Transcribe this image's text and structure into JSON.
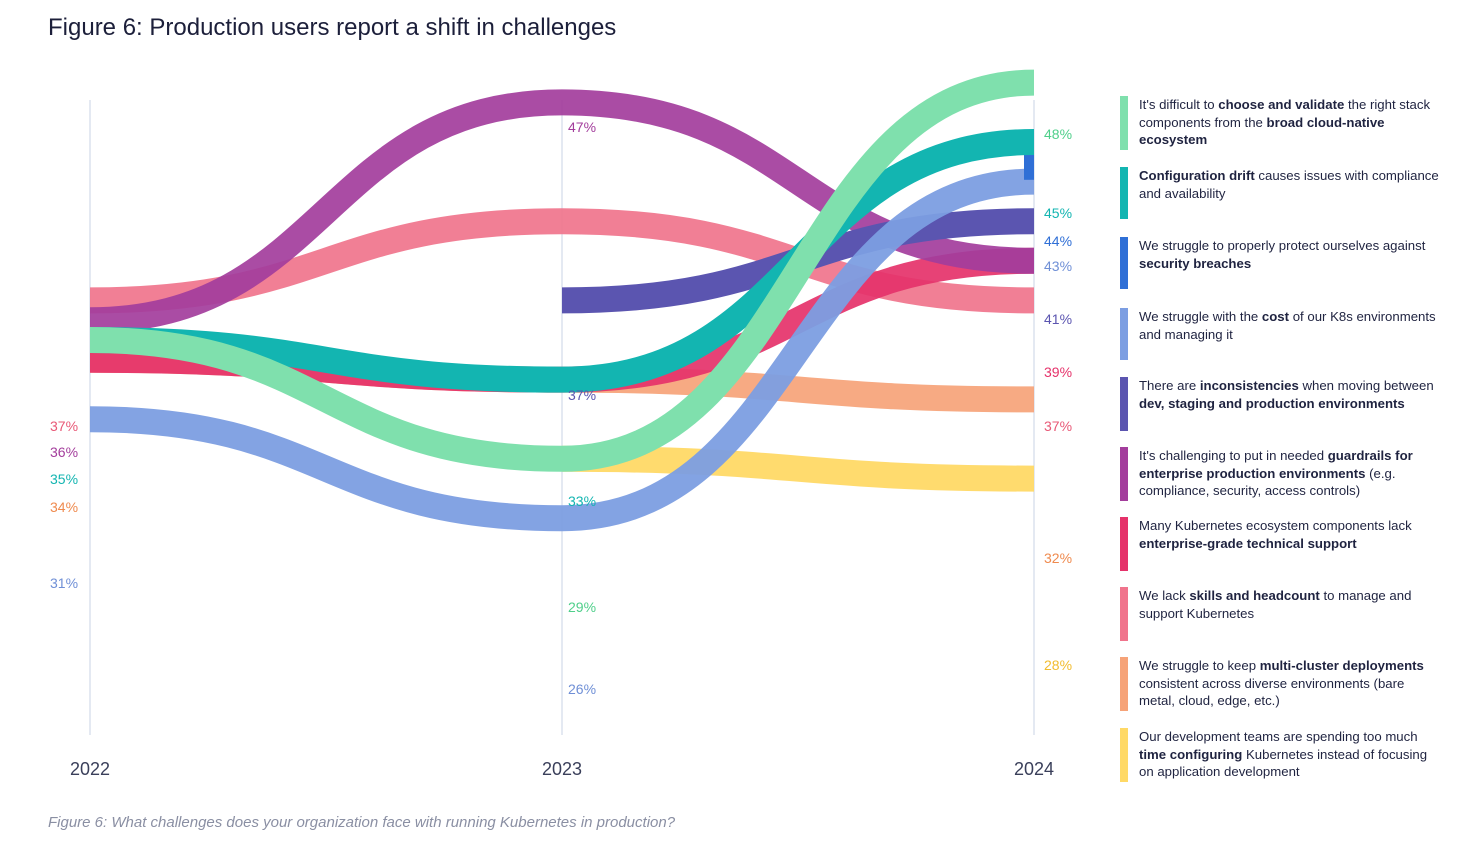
{
  "title": "Figure 6: Production users report a shift in challenges",
  "caption": "Figure 6: What challenges does your organization face with running Kubernetes in production?",
  "chart_data": {
    "type": "line",
    "style": "bump-ribbon",
    "x": [
      "2022",
      "2023",
      "2024"
    ],
    "y_unit": "% of respondents",
    "series": [
      {
        "name_parts": [
          {
            "t": "It's difficult to ",
            "b": false
          },
          {
            "t": "choose and validate",
            "b": true
          },
          {
            "t": " the right stack components from the ",
            "b": false
          },
          {
            "t": "broad cloud-native ecosystem",
            "b": true
          }
        ],
        "values": [
          35,
          29,
          48
        ],
        "labels": [
          "",
          "29%",
          "48%"
        ],
        "color": "#7fe0ad",
        "opacity": 1.0
      },
      {
        "name_parts": [
          {
            "t": "Configuration drift",
            "b": true
          },
          {
            "t": " causes issues with compliance and availability",
            "b": false
          }
        ],
        "values": [
          35,
          33,
          45
        ],
        "labels": [
          "35%",
          "33%",
          "45%"
        ],
        "color": "#13b5b1",
        "opacity": 1.0
      },
      {
        "name_parts": [
          {
            "t": "We struggle to properly protect ourselves against ",
            "b": false
          },
          {
            "t": "security breaches",
            "b": true
          }
        ],
        "values": [
          null,
          null,
          44
        ],
        "labels": [
          "",
          "",
          "44%"
        ],
        "color": "#2f6fd6",
        "opacity": 1.0
      },
      {
        "name_parts": [
          {
            "t": "We struggle with the ",
            "b": false
          },
          {
            "t": "cost",
            "b": true
          },
          {
            "t": " of our K8s environments and managing it",
            "b": false
          }
        ],
        "values": [
          31,
          26,
          43
        ],
        "labels": [
          "31%",
          "26%",
          "43%"
        ],
        "color": "#7c9ee2",
        "opacity": 0.95
      },
      {
        "name_parts": [
          {
            "t": "There are ",
            "b": false
          },
          {
            "t": "inconsistencies",
            "b": true
          },
          {
            "t": " when moving between ",
            "b": false
          },
          {
            "t": "dev, staging and production environments",
            "b": true
          }
        ],
        "values": [
          null,
          37,
          41
        ],
        "labels": [
          "",
          "37%",
          "41%"
        ],
        "color": "#5b55b0",
        "opacity": 1.0
      },
      {
        "name_parts": [
          {
            "t": "It's challenging to put in needed ",
            "b": false
          },
          {
            "t": "guardrails for enterprise production environments",
            "b": true
          },
          {
            "t": " (e.g. compliance, security, access controls)",
            "b": false
          }
        ],
        "values": [
          36,
          47,
          39
        ],
        "labels": [
          "36%",
          "47%",
          ""
        ],
        "color": "#a33d9c",
        "opacity": 0.92
      },
      {
        "name_parts": [
          {
            "t": "Many Kubernetes ecosystem components lack ",
            "b": false
          },
          {
            "t": "enterprise-grade technical support",
            "b": true
          }
        ],
        "values": [
          34,
          33,
          39
        ],
        "labels": [
          "",
          "",
          "39%"
        ],
        "color": "#e5326a",
        "opacity": 0.92
      },
      {
        "name_parts": [
          {
            "t": "We lack ",
            "b": false
          },
          {
            "t": "skills and headcount",
            "b": true
          },
          {
            "t": " to manage and support Kubernetes",
            "b": false
          }
        ],
        "values": [
          37,
          41,
          37
        ],
        "labels": [
          "37%",
          "",
          "37%"
        ],
        "color": "#f0748c",
        "opacity": 0.92
      },
      {
        "name_parts": [
          {
            "t": "We struggle to keep ",
            "b": false
          },
          {
            "t": "multi-cluster deployments",
            "b": true
          },
          {
            "t": " consistent across diverse environments (bare metal, cloud, edge, etc.)",
            "b": false
          }
        ],
        "values": [
          34,
          33,
          32
        ],
        "labels": [
          "34%",
          "",
          "32%"
        ],
        "color": "#f6a378",
        "opacity": 0.92
      },
      {
        "name_parts": [
          {
            "t": "Our development teams are spending too much ",
            "b": false
          },
          {
            "t": "time configuring",
            "b": true
          },
          {
            "t": " Kubernetes instead of focusing on application development",
            "b": false
          }
        ],
        "values": [
          null,
          29,
          28
        ],
        "labels": [
          "",
          "",
          "28%"
        ],
        "color": "#ffd966",
        "opacity": 0.95
      }
    ],
    "label_colors": {
      "35%_2022": "#13b5b1"
    }
  }
}
